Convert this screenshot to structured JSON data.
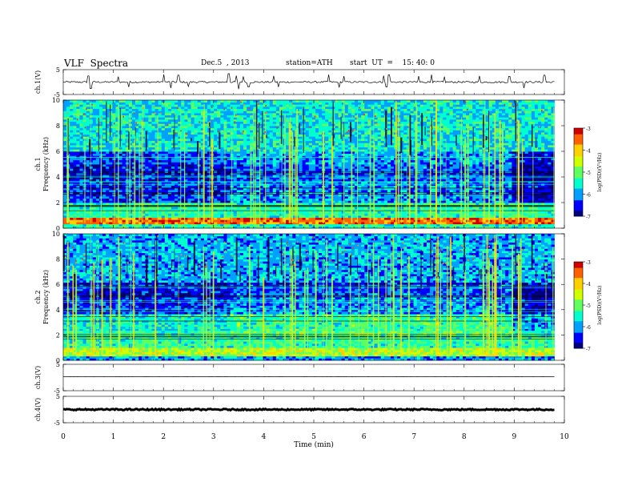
{
  "header": {
    "title": "VLF  Spectra",
    "date": "Dec.5  , 2013",
    "station": "station=ATH",
    "start": "start  UT  =    15: 40: 0"
  },
  "chart_data": [
    {
      "type": "line",
      "panel": "ch1-waveform",
      "ylabel": "ch.1(V)",
      "yticks": [
        "5",
        "-5"
      ],
      "ylim": [
        -5,
        5
      ],
      "xlim": [
        0,
        10
      ],
      "data_end_min": 9.8,
      "baseline": 0,
      "noise_level": 0.35,
      "spikes": [
        [
          0.5,
          2.5
        ],
        [
          0.55,
          -2.6
        ],
        [
          1.1,
          2.2
        ],
        [
          1.3,
          -2
        ],
        [
          2.0,
          3.1
        ],
        [
          2.15,
          -2.4
        ],
        [
          2.3,
          2.8
        ],
        [
          2.5,
          -1.8
        ],
        [
          3.3,
          3.4
        ],
        [
          3.45,
          2.6
        ],
        [
          3.5,
          -2.8
        ],
        [
          3.6,
          2.3
        ],
        [
          3.7,
          -2
        ],
        [
          4.2,
          2.5
        ],
        [
          4.3,
          -2
        ],
        [
          5.3,
          3.0
        ],
        [
          5.5,
          -2.2
        ],
        [
          5.6,
          2.4
        ],
        [
          6.4,
          2.6
        ],
        [
          6.45,
          -2
        ],
        [
          6.5,
          2.9
        ],
        [
          7.1,
          2.4
        ],
        [
          7.35,
          3.0
        ],
        [
          7.6,
          2.2
        ],
        [
          8.3,
          2.5
        ],
        [
          8.9,
          2.3
        ],
        [
          9.2,
          -2.4
        ],
        [
          9.6,
          2.8
        ]
      ]
    },
    {
      "type": "heatmap",
      "panel": "ch1-spectrogram",
      "ylabel": "Frequency  (kHz)",
      "channel_label": "ch.1",
      "yticks": [
        "0",
        "2",
        "4",
        "6",
        "8",
        "10"
      ],
      "ylim": [
        0,
        10
      ],
      "xlim": [
        0,
        10
      ],
      "data_end_min": 9.8,
      "colorbar": {
        "label": "log(PSD)(V²/Hz)",
        "ticks": [
          "-3",
          "-4",
          "-5",
          "-6",
          "-7"
        ],
        "range": [
          -7,
          -3
        ]
      },
      "bands": [
        {
          "f0": 0,
          "f1": 0.35,
          "level": -5.4
        },
        {
          "f0": 0.35,
          "f1": 0.9,
          "level": -3.5
        },
        {
          "f0": 0.9,
          "f1": 2.0,
          "level": -5.3
        },
        {
          "f0": 2.0,
          "f1": 3.7,
          "level": -6.4
        },
        {
          "f0": 3.7,
          "f1": 5.0,
          "level": -6.6
        },
        {
          "f0": 5.0,
          "f1": 6.0,
          "level": -6.3
        },
        {
          "f0": 6.0,
          "f1": 10.0,
          "level": -5.6
        }
      ],
      "regime_changes_min": [
        3.3,
        8.95
      ],
      "sferic_density": 0.55
    },
    {
      "type": "heatmap",
      "panel": "ch2-spectrogram",
      "ylabel": "Frequency  (kHz)",
      "channel_label": "ch.2",
      "yticks": [
        "0",
        "2",
        "4",
        "6",
        "8",
        "10"
      ],
      "ylim": [
        0,
        10
      ],
      "xlim": [
        0,
        10
      ],
      "data_end_min": 9.8,
      "colorbar": {
        "label": "log(PSD)(V²/Hz)",
        "ticks": [
          "-3",
          "-4",
          "-5",
          "-6",
          "-7"
        ],
        "range": [
          -7,
          -3
        ]
      },
      "bands": [
        {
          "f0": 0,
          "f1": 0.3,
          "level": -6.0
        },
        {
          "f0": 0.3,
          "f1": 1.0,
          "level": -4.6
        },
        {
          "f0": 1.0,
          "f1": 2.3,
          "level": -5.3
        },
        {
          "f0": 2.3,
          "f1": 3.6,
          "level": -5.6
        },
        {
          "f0": 3.6,
          "f1": 5.0,
          "level": -6.4
        },
        {
          "f0": 5.0,
          "f1": 6.2,
          "level": -6.6
        },
        {
          "f0": 6.2,
          "f1": 10.0,
          "level": -5.9
        }
      ],
      "regime_changes_min": [
        3.3,
        8.95
      ],
      "sferic_density": 0.6
    },
    {
      "type": "line",
      "panel": "ch3-waveform",
      "ylabel": "ch.3(V)",
      "yticks": [
        "5",
        "-5"
      ],
      "ylim": [
        -5,
        5
      ],
      "xlim": [
        0,
        10
      ],
      "data_end_min": 9.8,
      "baseline": 0.3,
      "noise_level": 0.03,
      "spikes": []
    },
    {
      "type": "line",
      "panel": "ch4-waveform",
      "ylabel": "ch.4(V)",
      "yticks": [
        "5",
        "-5"
      ],
      "ylim": [
        -5,
        5
      ],
      "xlim": [
        0,
        10
      ],
      "data_end_min": 9.8,
      "baseline": 0,
      "noise_level": 0.25,
      "spikes": []
    }
  ],
  "x_axis": {
    "label": "Time  (min)",
    "ticks": [
      "0",
      "1",
      "2",
      "3",
      "4",
      "5",
      "6",
      "7",
      "8",
      "9",
      "10"
    ]
  },
  "colors": {
    "colormap": [
      "#00007f",
      "#0000ff",
      "#00a0ff",
      "#00ffcc",
      "#60ff60",
      "#d0ff00",
      "#ffd000",
      "#ff6000",
      "#d00000"
    ]
  }
}
